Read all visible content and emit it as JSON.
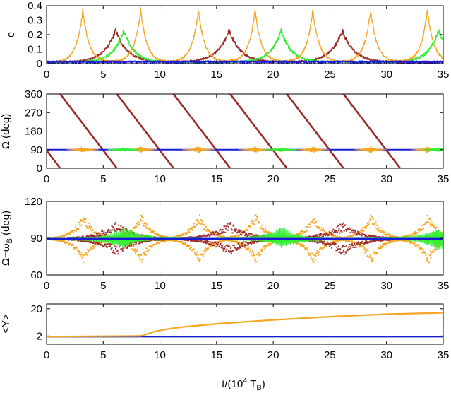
{
  "colors": {
    "orange": "#f5a623",
    "brown": "#9c2a26",
    "green": "#33ee33",
    "blue": "#1a1ad9"
  },
  "chart_data": [
    {
      "type": "line",
      "name": "panel-e",
      "ylabel": "e",
      "xlim": [
        0,
        35
      ],
      "ylim": [
        0,
        0.4
      ],
      "xticks": [
        0,
        5,
        10,
        15,
        20,
        25,
        30,
        35
      ],
      "xtick_labels": [
        "0",
        "5",
        "10",
        "15",
        "20",
        "25",
        "30",
        "35"
      ],
      "yticks": [
        0,
        0.1,
        0.2,
        0.3,
        0.4
      ],
      "ytick_labels": [
        "0",
        "0.1",
        "0.2",
        "0.3",
        "0.4"
      ],
      "series": [
        {
          "name": "orange",
          "color": "orange",
          "peak_times": [
            3.2,
            8.3,
            13.4,
            18.4,
            23.5,
            28.6,
            33.6
          ],
          "peak_value": 0.37,
          "baseline": 0.01
        },
        {
          "name": "brown",
          "color": "brown",
          "peak_times": [
            6.1,
            16.1,
            26.1
          ],
          "peak_value": 0.23,
          "baseline": 0.01
        },
        {
          "name": "green",
          "color": "green",
          "peak_times": [
            6.8,
            20.7,
            34.6
          ],
          "peak_value": 0.23,
          "baseline": 0.01
        },
        {
          "name": "blue",
          "color": "blue",
          "baseline": 0.012,
          "noise": 0.008
        }
      ]
    },
    {
      "type": "scatter",
      "name": "panel-omega",
      "ylabel": "Ω (deg)",
      "xlim": [
        0,
        35
      ],
      "ylim": [
        0,
        360
      ],
      "xticks": [
        0,
        5,
        10,
        15,
        20,
        25,
        30,
        35
      ],
      "xtick_labels": [
        "0",
        "5",
        "10",
        "15",
        "20",
        "25",
        "30",
        "35"
      ],
      "yticks": [
        0,
        90,
        180,
        270,
        360
      ],
      "ytick_labels": [
        "0",
        "90",
        "180",
        "270",
        "360"
      ],
      "series": [
        {
          "name": "brown",
          "color": "brown",
          "period": 5.0,
          "zero_crossings": [
            1.2,
            6.2,
            11.2,
            16.2,
            21.2,
            26.2,
            31.2
          ]
        },
        {
          "name": "orange",
          "color": "orange",
          "center": 90,
          "burst_times": [
            3.2,
            8.3,
            13.4,
            18.4,
            23.5,
            28.6,
            33.6
          ],
          "amplitude": 18
        },
        {
          "name": "green",
          "color": "green",
          "center": 90,
          "burst_times": [
            6.8,
            20.7,
            34.6
          ],
          "amplitude": 12
        },
        {
          "name": "blue",
          "color": "blue",
          "center": 90
        }
      ]
    },
    {
      "type": "scatter",
      "name": "panel-omega-minus-varpi",
      "ylabel": "Ω−ϖ",
      "ylabel_sub": "B",
      "ylabel_unit": " (deg)",
      "xlim": [
        0,
        35
      ],
      "ylim": [
        60,
        120
      ],
      "xticks": [
        0,
        5,
        10,
        15,
        20,
        25,
        30,
        35
      ],
      "xtick_labels": [
        "0",
        "5",
        "10",
        "15",
        "20",
        "25",
        "30",
        "35"
      ],
      "yticks": [
        60,
        90,
        120
      ],
      "ytick_labels": [
        "60",
        "90",
        "120"
      ],
      "series": [
        {
          "name": "orange",
          "color": "orange",
          "center": 89.5,
          "peak_times": [
            3.2,
            8.3,
            13.4,
            18.4,
            23.5,
            28.6,
            33.6
          ],
          "amplitude": 21
        },
        {
          "name": "brown",
          "color": "brown",
          "center": 89.5,
          "peak_times": [
            6.1,
            16.1,
            26.1
          ],
          "amplitude": 14
        },
        {
          "name": "green",
          "color": "green",
          "center": 89.5,
          "peak_times": [
            6.8,
            20.7,
            34.6
          ],
          "amplitude": 10
        },
        {
          "name": "blue",
          "color": "blue",
          "center": 89.5
        }
      ]
    },
    {
      "type": "line",
      "name": "panel-y",
      "ylabel": "<Y>",
      "xlabel_main": "t/(10",
      "xlabel_sup": "4",
      "xlabel_mid": " T",
      "xlabel_sub": "B",
      "xlabel_end": ")",
      "xlim": [
        0,
        35
      ],
      "ylim": [
        1,
        30
      ],
      "yscale": "log",
      "xticks": [
        0,
        5,
        10,
        15,
        20,
        25,
        30,
        35
      ],
      "xtick_labels": [
        "0",
        "5",
        "10",
        "15",
        "20",
        "25",
        "30",
        "35"
      ],
      "yticks": [
        2,
        20
      ],
      "ytick_labels": [
        "2",
        "20"
      ],
      "series": [
        {
          "name": "orange",
          "color": "orange",
          "points": [
            [
              0,
              1.9
            ],
            [
              8.3,
              2.0
            ],
            [
              8.8,
              2.3
            ],
            [
              9.5,
              2.9
            ],
            [
              10.5,
              3.5
            ],
            [
              12,
              4.3
            ],
            [
              15,
              5.6
            ],
            [
              20,
              7.8
            ],
            [
              25,
              10.2
            ],
            [
              30,
              12.6
            ],
            [
              35,
              14.2
            ]
          ]
        },
        {
          "name": "green",
          "color": "green",
          "points": [
            [
              0,
              1.9
            ],
            [
              35,
              1.9
            ]
          ]
        },
        {
          "name": "brown",
          "color": "brown",
          "points": [
            [
              0,
              1.9
            ],
            [
              35,
              1.9
            ]
          ]
        },
        {
          "name": "blue",
          "color": "blue",
          "points": [
            [
              0,
              1.92
            ],
            [
              35,
              1.92
            ]
          ]
        }
      ]
    }
  ]
}
